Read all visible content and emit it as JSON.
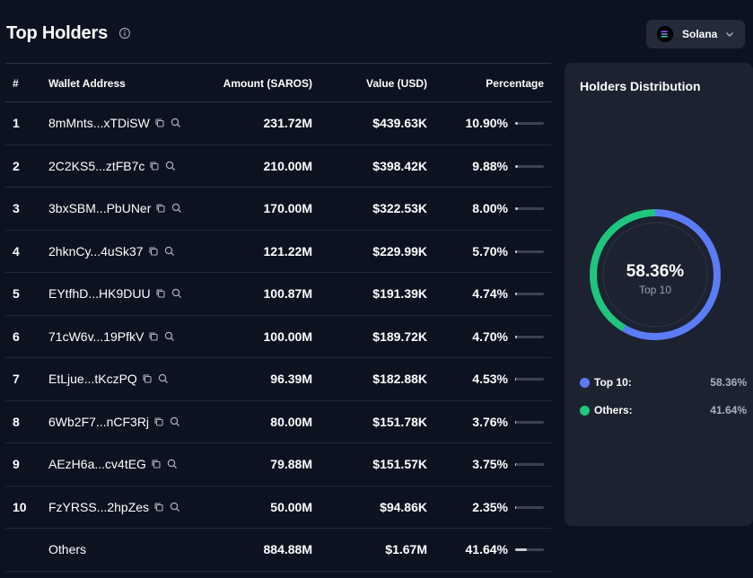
{
  "header": {
    "title": "Top Holders",
    "chain": "Solana"
  },
  "table": {
    "columns": {
      "rank": "#",
      "wallet": "Wallet Address",
      "amount": "Amount (SAROS)",
      "value": "Value (USD)",
      "percentage": "Percentage"
    },
    "rows": [
      {
        "rank": "1",
        "address": "8mMnts...xTDiSW",
        "amount": "231.72M",
        "value": "$439.63K",
        "percentage": "10.90%",
        "share": 10.9
      },
      {
        "rank": "2",
        "address": "2C2KS5...ztFB7c",
        "amount": "210.00M",
        "value": "$398.42K",
        "percentage": "9.88%",
        "share": 9.88
      },
      {
        "rank": "3",
        "address": "3bxSBM...PbUNer",
        "amount": "170.00M",
        "value": "$322.53K",
        "percentage": "8.00%",
        "share": 8.0
      },
      {
        "rank": "4",
        "address": "2hknCy...4uSk37",
        "amount": "121.22M",
        "value": "$229.99K",
        "percentage": "5.70%",
        "share": 5.7
      },
      {
        "rank": "5",
        "address": "EYtfhD...HK9DUU",
        "amount": "100.87M",
        "value": "$191.39K",
        "percentage": "4.74%",
        "share": 4.74
      },
      {
        "rank": "6",
        "address": "71cW6v...19PfkV",
        "amount": "100.00M",
        "value": "$189.72K",
        "percentage": "4.70%",
        "share": 4.7
      },
      {
        "rank": "7",
        "address": "EtLjue...tKczPQ",
        "amount": "96.39M",
        "value": "$182.88K",
        "percentage": "4.53%",
        "share": 4.53
      },
      {
        "rank": "8",
        "address": "6Wb2F7...nCF3Rj",
        "amount": "80.00M",
        "value": "$151.78K",
        "percentage": "3.76%",
        "share": 3.76
      },
      {
        "rank": "9",
        "address": "AEzH6a...cv4tEG",
        "amount": "79.88M",
        "value": "$151.57K",
        "percentage": "3.75%",
        "share": 3.75
      },
      {
        "rank": "10",
        "address": "FzYRSS...2hpZes",
        "amount": "50.00M",
        "value": "$94.86K",
        "percentage": "2.35%",
        "share": 2.35
      }
    ],
    "others": {
      "label": "Others",
      "amount": "884.88M",
      "value": "$1.67M",
      "percentage": "41.64%",
      "share": 41.64
    }
  },
  "distribution": {
    "title": "Holders Distribution",
    "center_value": "58.36%",
    "center_label": "Top 10",
    "segments": [
      {
        "label": "Top 10:",
        "value": "58.36%",
        "share": 58.36,
        "color": "#5b7cf7"
      },
      {
        "label": "Others:",
        "value": "41.64%",
        "share": 41.64,
        "color": "#1fc77e"
      }
    ]
  }
}
